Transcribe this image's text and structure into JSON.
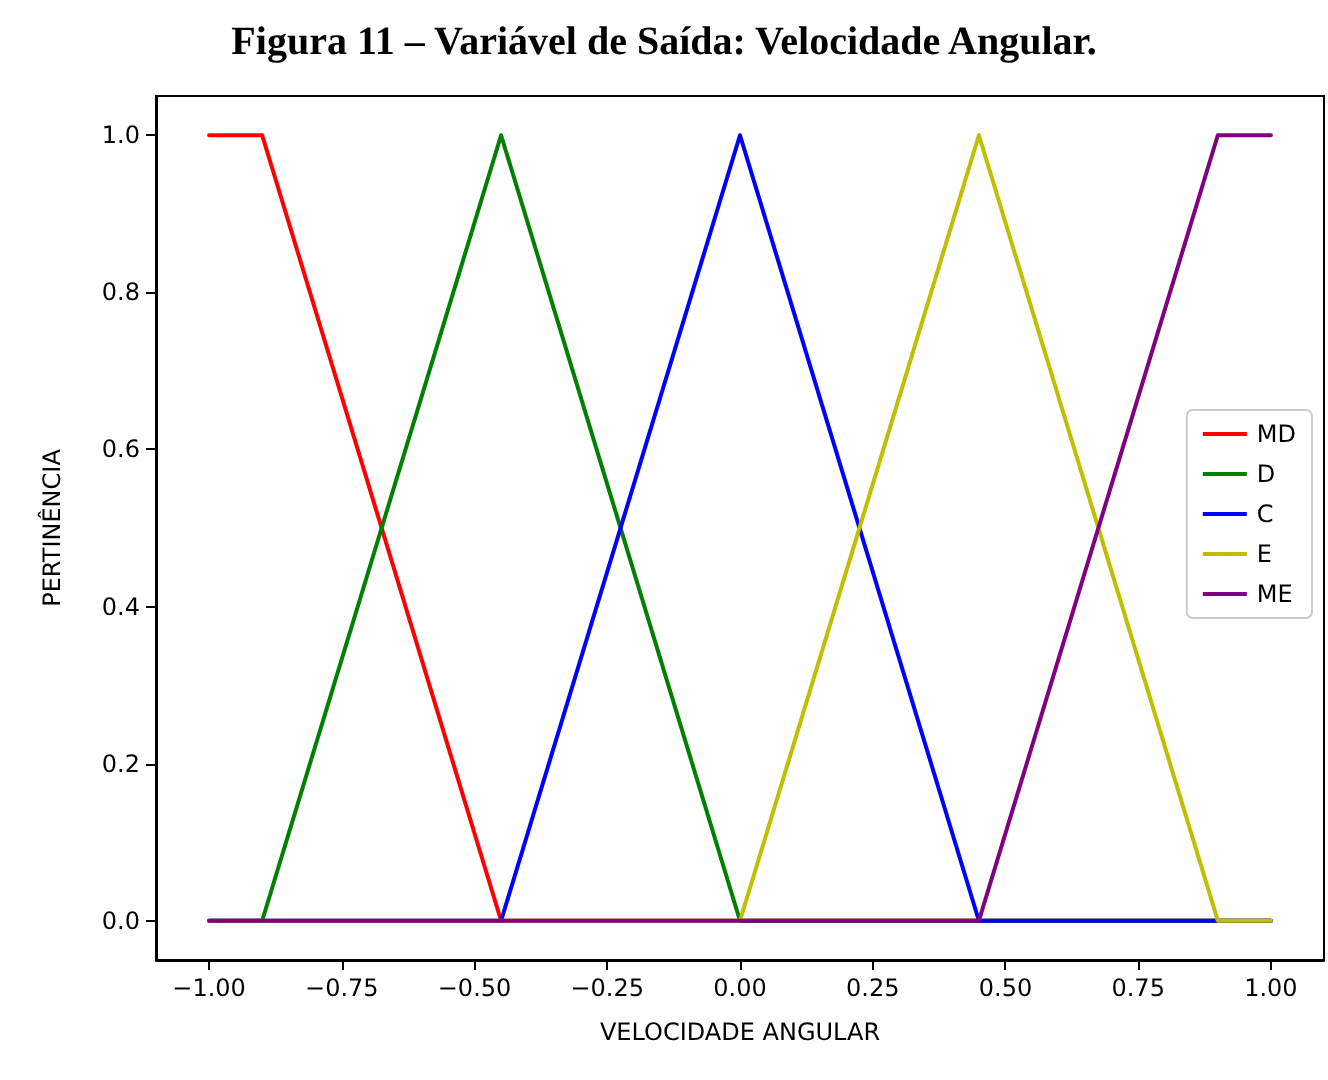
{
  "chart_data": {
    "type": "line",
    "title": "Figura 11 – Variável de Saída: Velocidade Angular.",
    "xlabel": "VELOCIDADE ANGULAR",
    "ylabel": "PERTINÊNCIA",
    "series": [
      {
        "name": "MD",
        "color": "#ff0000",
        "x": [
          -1,
          -0.9,
          -0.45,
          1
        ],
        "values": [
          1,
          1,
          0,
          0
        ]
      },
      {
        "name": "D",
        "color": "#008000",
        "x": [
          -1,
          -0.9,
          -0.45,
          0,
          1
        ],
        "values": [
          0,
          0,
          1,
          0,
          0
        ]
      },
      {
        "name": "C",
        "color": "#0000ff",
        "x": [
          -1,
          -0.45,
          0,
          0.45,
          1
        ],
        "values": [
          0,
          0,
          1,
          0,
          0
        ]
      },
      {
        "name": "E",
        "color": "#bfbf00",
        "x": [
          -1,
          0,
          0.45,
          0.9,
          1
        ],
        "values": [
          0,
          0,
          1,
          0,
          0
        ]
      },
      {
        "name": "ME",
        "color": "#800080",
        "x": [
          -1,
          0.45,
          0.9,
          1
        ],
        "values": [
          0,
          0,
          1,
          1
        ]
      }
    ],
    "xlim": [
      -1.1,
      1.1
    ],
    "xticks": [
      {
        "value": -1,
        "label": "−1.00"
      },
      {
        "value": -0.75,
        "label": "−0.75"
      },
      {
        "value": -0.5,
        "label": "−0.50"
      },
      {
        "value": -0.25,
        "label": "−0.25"
      },
      {
        "value": 0,
        "label": "0.00"
      },
      {
        "value": 0.25,
        "label": "0.25"
      },
      {
        "value": 0.5,
        "label": "0.50"
      },
      {
        "value": 0.75,
        "label": "0.75"
      },
      {
        "value": 1,
        "label": "1.00"
      }
    ],
    "ylim": [
      -0.05,
      1.05
    ],
    "yticks": [
      {
        "value": 0,
        "label": "0.0"
      },
      {
        "value": 0.2,
        "label": "0.2"
      },
      {
        "value": 0.4,
        "label": "0.4"
      },
      {
        "value": 0.6,
        "label": "0.6"
      },
      {
        "value": 0.8,
        "label": "0.8"
      },
      {
        "value": 1,
        "label": "1.0"
      }
    ],
    "grid": false,
    "legend": "right",
    "marker": "none",
    "line_style": "solid"
  }
}
